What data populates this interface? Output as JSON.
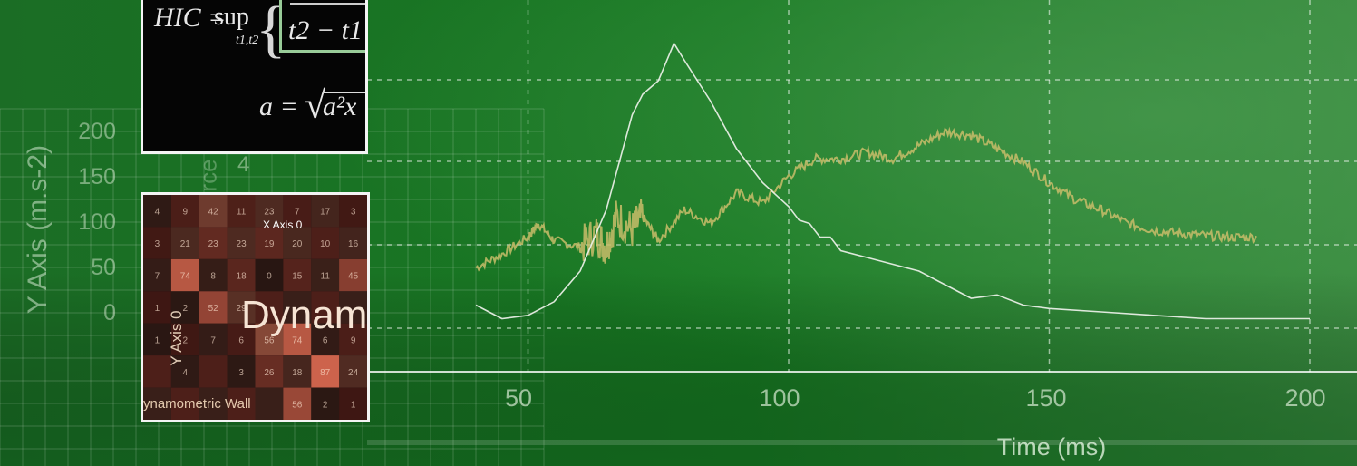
{
  "colors": {
    "bg_dark": "#13651f",
    "bg_light": "#3f9147",
    "trace_yellow": "#c9bd6a",
    "trace_white": "#f2f4ee"
  },
  "y_axis": {
    "label": "Y Axis (m.s-2)",
    "ticks": [
      "200",
      "150",
      "100",
      "50",
      "0"
    ]
  },
  "force_label": "rce",
  "partial_tick": "4",
  "x_axis": {
    "label": "Time (ms)",
    "ticks": [
      "50",
      "100",
      "150",
      "200"
    ]
  },
  "formula": {
    "hic": "HIC =",
    "sup": "sup",
    "sub": "t1,t2",
    "denominator": "t2 − t1",
    "accel": "a =",
    "ax": "a²x"
  },
  "heatmap": {
    "x_axis": "X Axis 0",
    "y_axis": "Y Axis 0",
    "title": "Dynamo",
    "wall_label": "ynamometric Wall",
    "values": [
      [
        "4",
        "9",
        "42",
        "11",
        "23",
        "7",
        "17",
        "3"
      ],
      [
        "3",
        "21",
        "23",
        "23",
        "19",
        "20",
        "10",
        "16"
      ],
      [
        "7",
        "74",
        "8",
        "18",
        "0",
        "15",
        "11",
        "45"
      ],
      [
        "1",
        "2",
        "52",
        "29",
        "",
        "",
        "",
        ""
      ],
      [
        "1",
        "2",
        "7",
        "6",
        "56",
        "74",
        "6",
        "9"
      ],
      [
        "",
        "4",
        "",
        "3",
        "26",
        "18",
        "87",
        "24"
      ],
      [
        "",
        "",
        "",
        "",
        "",
        "56",
        "2",
        "1"
      ]
    ]
  },
  "chart_data": {
    "type": "line",
    "xlabel": "Time (ms)",
    "ylabel": "Y Axis (m.s-2)",
    "xlim": [
      0,
      200
    ],
    "x_ticks": [
      50,
      100,
      150,
      200
    ],
    "series": [
      {
        "values_x": [
          40,
          45,
          50,
          52,
          55,
          60,
          63,
          65,
          67,
          70,
          72,
          75,
          80,
          85,
          90,
          95,
          100,
          105,
          110,
          115,
          120,
          125,
          130,
          135,
          140,
          145,
          150,
          155,
          160,
          165,
          170,
          175,
          180,
          185,
          190
        ],
        "values_y": [
          65,
          85,
          110,
          130,
          105,
          95,
          115,
          95,
          140,
          120,
          140,
          105,
          150,
          130,
          175,
          160,
          200,
          225,
          225,
          235,
          225,
          245,
          265,
          260,
          240,
          220,
          190,
          165,
          150,
          130,
          120,
          115,
          112,
          110,
          110
        ]
      },
      {
        "values_x": [
          40,
          45,
          50,
          55,
          60,
          65,
          70,
          72,
          75,
          78,
          80,
          85,
          90,
          95,
          100,
          102,
          104,
          106,
          108,
          110,
          115,
          120,
          125,
          130,
          135,
          140,
          145,
          150,
          160,
          170,
          180,
          190,
          200
        ],
        "values_y": [
          10,
          -10,
          -5,
          15,
          60,
          150,
          290,
          320,
          340,
          395,
          370,
          310,
          240,
          190,
          155,
          135,
          130,
          110,
          110,
          90,
          80,
          70,
          60,
          40,
          20,
          25,
          10,
          5,
          0,
          -5,
          -10,
          -10,
          -10
        ]
      }
    ]
  }
}
